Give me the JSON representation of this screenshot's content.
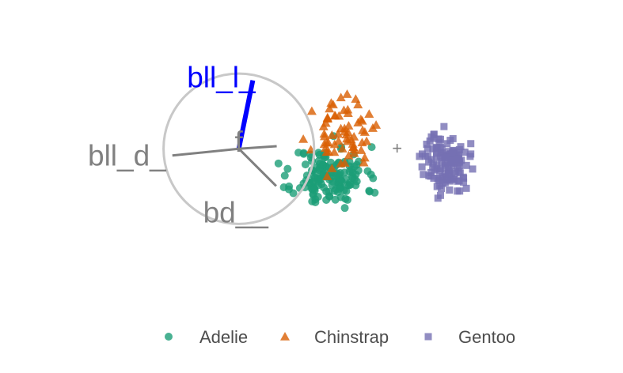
{
  "chart_data": {
    "type": "scatter",
    "title": "",
    "xlabel": "",
    "ylabel": "",
    "grid": false,
    "legend_position": "bottom",
    "xlim": [
      -6,
      6
    ],
    "ylim": [
      -2.9,
      3.9
    ],
    "series": [
      {
        "name": "Adelie",
        "shape": "circle",
        "color": "#1b9e77",
        "center": [
          0.35,
          0.1
        ],
        "spread": [
          0.35,
          0.32
        ],
        "count": 150,
        "seed": 11
      },
      {
        "name": "Chinstrap",
        "shape": "triangle",
        "color": "#d95f02",
        "center": [
          0.6,
          1.0
        ],
        "spread": [
          0.28,
          0.35
        ],
        "count": 68,
        "seed": 23
      },
      {
        "name": "Gentoo",
        "shape": "square",
        "color": "#7570b3",
        "center": [
          2.6,
          0.4
        ],
        "spread": [
          0.22,
          0.32
        ],
        "count": 124,
        "seed": 37
      }
    ],
    "center_marker": {
      "glyph": "+",
      "x": 1.65,
      "y": 0.72
    },
    "axes_circle": {
      "center": [
        -1.4,
        0.7
      ],
      "radius": 1.45
    },
    "projection_axes": [
      {
        "label": "bll_l_",
        "dx": 0.27,
        "dy": 1.32,
        "color": "#0000ff",
        "highlighted": true
      },
      {
        "label": "bll_d_",
        "dx": -1.28,
        "dy": -0.13,
        "color": "#808080",
        "highlighted": false
      },
      {
        "label": "bd__",
        "dx": 0.72,
        "dy": -0.72,
        "color": "#808080",
        "highlighted": false
      },
      {
        "label": "f",
        "dx": 0.73,
        "dy": 0.05,
        "color": "#808080",
        "highlighted": false
      }
    ]
  }
}
